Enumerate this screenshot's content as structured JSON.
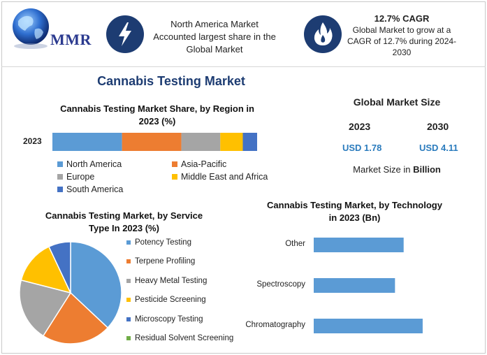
{
  "header": {
    "logo_text": "MMR",
    "highlight1": {
      "icon": "lightning-icon",
      "lines": [
        "North America Market",
        "Accounted largest share in the",
        "Global Market"
      ]
    },
    "highlight2": {
      "icon": "flame-icon",
      "title": "12.7% CAGR",
      "lines": [
        "Global Market to grow at a",
        "CAGR of 12.7% during 2024-",
        "2030"
      ]
    }
  },
  "main_title": "Cannabis Testing Market",
  "global_market": {
    "title": "Global Market Size",
    "years": [
      "2023",
      "2030"
    ],
    "values": [
      "USD 1.78",
      "USD 4.11"
    ],
    "unit_prefix": "Market Size in",
    "unit_bold": "Billion"
  },
  "colors": {
    "blue": "#5b9bd5",
    "orange": "#ed7d31",
    "gray": "#a5a5a5",
    "yellow": "#ffc000",
    "darkblue": "#4472c4",
    "green": "#70ad47",
    "navy": "#1d3c72"
  },
  "chart_data": [
    {
      "type": "bar",
      "orientation": "horizontal-stacked",
      "title_lines": [
        "Cannabis Testing Market Share, by Region in",
        "2023 (%)"
      ],
      "categories": [
        "2023"
      ],
      "series": [
        {
          "name": "North America",
          "values": [
            34
          ],
          "color": "#5b9bd5"
        },
        {
          "name": "Asia-Pacific",
          "values": [
            29
          ],
          "color": "#ed7d31"
        },
        {
          "name": "Europe",
          "values": [
            19
          ],
          "color": "#a5a5a5"
        },
        {
          "name": "Middle East and Africa",
          "values": [
            11
          ],
          "color": "#ffc000"
        },
        {
          "name": "South America",
          "values": [
            7
          ],
          "color": "#4472c4"
        }
      ],
      "legend_position": "bottom"
    },
    {
      "type": "pie",
      "title_lines": [
        "Cannabis Testing Market, by Service",
        "Type In 2023 (%)"
      ],
      "slices": [
        {
          "name": "Potency Testing",
          "value": 37,
          "color": "#5b9bd5"
        },
        {
          "name": "Terpene Profiling",
          "value": 22,
          "color": "#ed7d31"
        },
        {
          "name": "Heavy Metal Testing",
          "value": 20,
          "color": "#a5a5a5"
        },
        {
          "name": "Pesticide Screening",
          "value": 14,
          "color": "#ffc000"
        },
        {
          "name": "Microscopy Testing",
          "value": 7,
          "color": "#4472c4"
        },
        {
          "name": "Residual Solvent Screening",
          "value": 0,
          "color": "#70ad47"
        }
      ],
      "legend_position": "right"
    },
    {
      "type": "bar",
      "orientation": "horizontal",
      "title_lines": [
        "Cannabis Testing Market, by Technology",
        "in 2023 (Bn)"
      ],
      "categories": [
        "Other",
        "Spectroscopy",
        "Chromatography"
      ],
      "values": [
        0.52,
        0.47,
        0.63
      ],
      "color": "#5b9bd5",
      "xlim": [
        0,
        0.8
      ],
      "grid": false
    }
  ]
}
